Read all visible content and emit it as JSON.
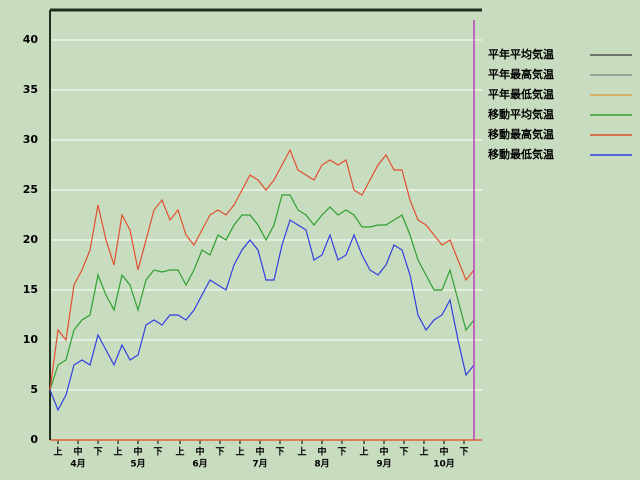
{
  "chart_data": {
    "type": "line",
    "x": [
      0,
      4,
      8,
      12,
      16,
      20,
      24,
      28,
      32,
      36,
      40,
      44,
      48,
      52,
      56,
      60,
      64,
      68,
      72,
      76,
      80,
      84,
      88,
      92,
      96,
      100,
      104,
      108,
      112,
      116,
      120,
      124,
      128,
      132,
      136,
      140,
      144,
      148,
      152,
      156,
      160,
      164,
      168,
      172,
      176,
      180,
      184,
      188,
      192,
      196,
      200,
      204,
      208,
      212
    ],
    "series": [
      {
        "name": "平年平均気温",
        "color": "#505050",
        "values": [
          null,
          null,
          null,
          null,
          null,
          null,
          null,
          null,
          null,
          null,
          null,
          null,
          null,
          null,
          null,
          null,
          null,
          null,
          null,
          null,
          null,
          null,
          null,
          null,
          null,
          null,
          null,
          null,
          null,
          null,
          null,
          null,
          null,
          null,
          null,
          null,
          null,
          null,
          null,
          null,
          null,
          null,
          null,
          null,
          null,
          null,
          null,
          null,
          null,
          null,
          null,
          null,
          null,
          null
        ]
      },
      {
        "name": "平年最高気温",
        "color": "#909090",
        "values": [
          null,
          null,
          null,
          null,
          null,
          null,
          null,
          null,
          null,
          null,
          null,
          null,
          null,
          null,
          null,
          null,
          null,
          null,
          null,
          null,
          null,
          null,
          null,
          null,
          null,
          null,
          null,
          null,
          null,
          null,
          null,
          null,
          null,
          null,
          null,
          null,
          null,
          null,
          null,
          null,
          null,
          null,
          null,
          null,
          null,
          null,
          null,
          null,
          null,
          null,
          null,
          null,
          null,
          null
        ]
      },
      {
        "name": "平年最低気温",
        "color": "#e0a050",
        "values": [
          null,
          null,
          null,
          null,
          null,
          null,
          null,
          null,
          null,
          null,
          null,
          null,
          null,
          null,
          null,
          null,
          null,
          null,
          null,
          null,
          null,
          null,
          null,
          null,
          null,
          null,
          null,
          null,
          null,
          null,
          null,
          null,
          null,
          null,
          null,
          null,
          null,
          null,
          null,
          null,
          null,
          null,
          null,
          null,
          null,
          null,
          null,
          null,
          null,
          null,
          null,
          null,
          null,
          null
        ]
      },
      {
        "name": "移動平均気温",
        "color": "#30a030",
        "values": [
          5,
          7.5,
          8,
          11,
          12,
          12.5,
          16.5,
          14.5,
          13,
          16.5,
          15.5,
          13,
          16,
          17,
          16.8,
          17,
          17,
          15.5,
          17,
          19,
          18.5,
          20.5,
          20,
          21.5,
          22.5,
          22.5,
          21.5,
          20,
          21.5,
          24.5,
          24.5,
          23,
          22.5,
          21.5,
          22.5,
          23.3,
          22.5,
          23,
          22.5,
          21.3,
          21.3,
          21.5,
          21.5,
          22,
          22.5,
          20.5,
          18,
          16.5,
          15,
          15,
          17,
          14,
          11,
          12
        ]
      },
      {
        "name": "移動最高気温",
        "color": "#e05030",
        "values": [
          5,
          11,
          10,
          15.5,
          17,
          19,
          23.5,
          20,
          17.5,
          22.5,
          21,
          17,
          20,
          23,
          24,
          22,
          23,
          20.5,
          19.5,
          21,
          22.5,
          23,
          22.5,
          23.5,
          25,
          26.5,
          26,
          25,
          26,
          27.5,
          29,
          27,
          26.5,
          26,
          27.5,
          28,
          27.5,
          28,
          25,
          24.5,
          26,
          27.5,
          28.5,
          27,
          27,
          24,
          22,
          21.5,
          20.5,
          19.5,
          20,
          18,
          16,
          17
        ]
      },
      {
        "name": "移動最低気温",
        "color": "#3040e0",
        "values": [
          5,
          3,
          4.5,
          7.5,
          8,
          7.5,
          10.5,
          9,
          7.5,
          9.5,
          8,
          8.5,
          11.5,
          12,
          11.5,
          12.5,
          12.5,
          12,
          13,
          14.5,
          16,
          15.5,
          15,
          17.5,
          19,
          20,
          19,
          16,
          16,
          19.5,
          22,
          21.5,
          21,
          18,
          18.5,
          20.5,
          18,
          18.5,
          20.5,
          18.5,
          17,
          16.5,
          17.5,
          19.5,
          19,
          16.5,
          12.5,
          11,
          12,
          12.5,
          14,
          10,
          6.5,
          7.5
        ]
      }
    ],
    "xlim": [
      0,
      216
    ],
    "xticks": [
      {
        "value": 4,
        "label": "上"
      },
      {
        "value": 14,
        "label": "中"
      },
      {
        "value": 24,
        "label": "下"
      },
      {
        "value": 34,
        "label": "上"
      },
      {
        "value": 44,
        "label": "中"
      },
      {
        "value": 54,
        "label": "下"
      },
      {
        "value": 65,
        "label": "上"
      },
      {
        "value": 75,
        "label": "中"
      },
      {
        "value": 85,
        "label": "下"
      },
      {
        "value": 95,
        "label": "上"
      },
      {
        "value": 105,
        "label": "中"
      },
      {
        "value": 115,
        "label": "下"
      },
      {
        "value": 126,
        "label": "上"
      },
      {
        "value": 136,
        "label": "中"
      },
      {
        "value": 146,
        "label": "下"
      },
      {
        "value": 157,
        "label": "上"
      },
      {
        "value": 167,
        "label": "中"
      },
      {
        "value": 177,
        "label": "下"
      },
      {
        "value": 187,
        "label": "上"
      },
      {
        "value": 197,
        "label": "中"
      },
      {
        "value": 207,
        "label": "下"
      }
    ],
    "month_labels": [
      {
        "value": 14,
        "label": "4月"
      },
      {
        "value": 44,
        "label": "5月"
      },
      {
        "value": 75,
        "label": "6月"
      },
      {
        "value": 105,
        "label": "7月"
      },
      {
        "value": 136,
        "label": "8月"
      },
      {
        "value": 167,
        "label": "9月"
      },
      {
        "value": 197,
        "label": "10月"
      }
    ],
    "ylim": [
      0,
      43
    ],
    "yticks": [
      0,
      5,
      10,
      15,
      20,
      25,
      30,
      35,
      40
    ],
    "grid": true,
    "vline_x": 212,
    "vline_color": "#c040c0"
  }
}
